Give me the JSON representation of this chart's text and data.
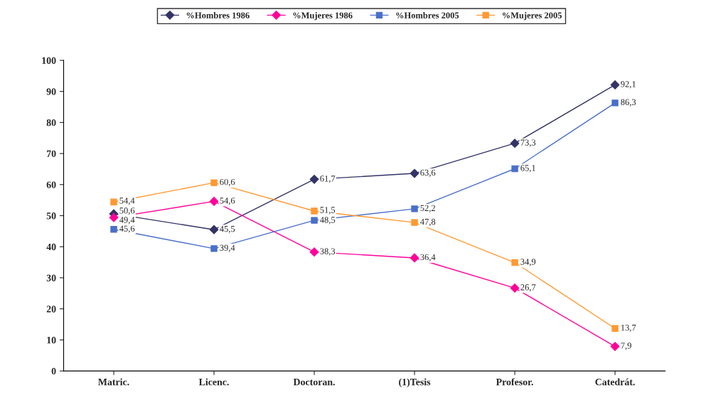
{
  "chart_data": {
    "type": "line",
    "categories": [
      "Matric.",
      "Licenc.",
      "Doctoran.",
      "(1)Tesis",
      "Profesor.",
      "Catedrát."
    ],
    "series": [
      {
        "name": "%Hombres 1986",
        "color": "#333366",
        "marker": "diamond",
        "values": [
          50.6,
          45.5,
          61.7,
          63.6,
          73.3,
          92.1
        ],
        "value_labels": [
          "50,6",
          "45,5",
          "61,7",
          "63,6",
          "73,3",
          "92,1"
        ]
      },
      {
        "name": "%Mujeres 1986",
        "color": "#ff0099",
        "marker": "diamond",
        "values": [
          49.4,
          54.6,
          38.3,
          36.4,
          26.7,
          7.9
        ],
        "value_labels": [
          "49,4",
          "54,6",
          "38,3",
          "36,4",
          "26,7",
          "7,9"
        ]
      },
      {
        "name": "%Hombres 2005",
        "color": "#4a6fc8",
        "marker": "square",
        "values": [
          45.6,
          39.4,
          48.5,
          52.2,
          65.1,
          86.3
        ],
        "value_labels": [
          "45,6",
          "39,4",
          "48,5",
          "52,2",
          "65,1",
          "86,3"
        ]
      },
      {
        "name": "%Mujeres 2005",
        "color": "#ff9933",
        "marker": "square",
        "values": [
          54.4,
          60.6,
          51.5,
          47.8,
          34.9,
          13.7
        ],
        "value_labels": [
          "54,4",
          "60,6",
          "51,5",
          "47,8",
          "34,9",
          "13,7"
        ]
      }
    ],
    "ylim": [
      0,
      100
    ],
    "yticks": [
      0,
      10,
      20,
      30,
      40,
      50,
      60,
      70,
      80,
      90,
      100
    ],
    "grid": false,
    "legend": "top",
    "line_style": "solid"
  }
}
